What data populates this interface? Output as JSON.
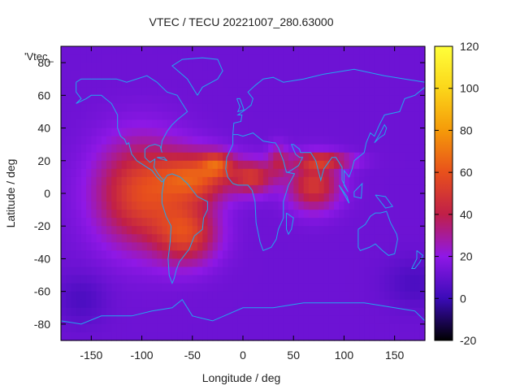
{
  "chart_data": {
    "type": "heatmap",
    "title": "VTEC / TECU 20221007_280.63000",
    "xlabel": "Longitude / deg",
    "ylabel": "Latitude / deg",
    "xlim": [
      -180,
      180
    ],
    "ylim": [
      -90,
      90
    ],
    "x_ticks": [
      -150,
      -100,
      -50,
      0,
      50,
      100,
      150
    ],
    "y_ticks": [
      -80,
      -60,
      -40,
      -20,
      0,
      20,
      40,
      60,
      80
    ],
    "key_label": "'Vtec_",
    "colorbar": {
      "range": [
        -20,
        120
      ],
      "ticks": [
        -20,
        0,
        20,
        40,
        60,
        80,
        100,
        120
      ],
      "palette": [
        "#000000",
        "#3b0bb8",
        "#8f18e6",
        "#c01f48",
        "#e8501c",
        "#f59a09",
        "#fbd61a",
        "#ffff3a"
      ]
    },
    "background_level": 12,
    "anomalies": [
      {
        "lon": -100,
        "lat": 0,
        "sx": 45,
        "sy": 32,
        "amp": 44
      },
      {
        "lon": -45,
        "lat": 10,
        "sx": 35,
        "sy": 15,
        "amp": 42
      },
      {
        "lon": -25,
        "lat": 18,
        "sx": 15,
        "sy": 7,
        "amp": 30
      },
      {
        "lon": -55,
        "lat": -25,
        "sx": 30,
        "sy": 18,
        "amp": 38
      },
      {
        "lon": 10,
        "lat": 10,
        "sx": 20,
        "sy": 10,
        "amp": 35
      },
      {
        "lon": 70,
        "lat": 5,
        "sx": 25,
        "sy": 15,
        "amp": 38
      },
      {
        "lon": 80,
        "lat": 20,
        "sx": 30,
        "sy": 5,
        "amp": 30
      },
      {
        "lon": 35,
        "lat": 20,
        "sx": 10,
        "sy": 10,
        "amp": 20
      },
      {
        "lon": 170,
        "lat": -55,
        "sx": 30,
        "sy": 15,
        "amp": -8
      },
      {
        "lon": -160,
        "lat": -65,
        "sx": 25,
        "sy": 15,
        "amp": -8
      }
    ],
    "coastlines": [
      [
        [
          -165,
          68
        ],
        [
          -160,
          70
        ],
        [
          -140,
          70
        ],
        [
          -125,
          70
        ],
        [
          -115,
          68
        ],
        [
          -95,
          72
        ],
        [
          -85,
          68
        ],
        [
          -80,
          65
        ],
        [
          -75,
          62
        ],
        [
          -65,
          60
        ],
        [
          -60,
          55
        ],
        [
          -55,
          50
        ],
        [
          -65,
          45
        ],
        [
          -70,
          42
        ],
        [
          -75,
          38
        ],
        [
          -80,
          32
        ],
        [
          -81,
          27
        ],
        [
          -80,
          25
        ],
        [
          -82,
          29
        ],
        [
          -87,
          30
        ],
        [
          -93,
          29
        ],
        [
          -97,
          27
        ],
        [
          -97,
          22
        ],
        [
          -92,
          19
        ],
        [
          -87,
          21
        ],
        [
          -88,
          16
        ],
        [
          -84,
          12
        ],
        [
          -80,
          9
        ],
        [
          -78,
          8
        ],
        [
          -80,
          7
        ],
        [
          -85,
          10
        ],
        [
          -90,
          14
        ],
        [
          -95,
          16
        ],
        [
          -105,
          20
        ],
        [
          -110,
          24
        ],
        [
          -113,
          31
        ],
        [
          -115,
          30
        ],
        [
          -117,
          33
        ],
        [
          -121,
          35
        ],
        [
          -124,
          40
        ],
        [
          -124,
          48
        ],
        [
          -130,
          55
        ],
        [
          -140,
          60
        ],
        [
          -150,
          60
        ],
        [
          -155,
          58
        ],
        [
          -165,
          55
        ],
        [
          -160,
          58
        ],
        [
          -165,
          62
        ],
        [
          -165,
          68
        ]
      ],
      [
        [
          -78,
          8
        ],
        [
          -75,
          11
        ],
        [
          -70,
          12
        ],
        [
          -62,
          10
        ],
        [
          -55,
          6
        ],
        [
          -50,
          2
        ],
        [
          -45,
          -2
        ],
        [
          -35,
          -5
        ],
        [
          -35,
          -10
        ],
        [
          -39,
          -15
        ],
        [
          -40,
          -22
        ],
        [
          -48,
          -26
        ],
        [
          -53,
          -34
        ],
        [
          -58,
          -38
        ],
        [
          -63,
          -42
        ],
        [
          -66,
          -47
        ],
        [
          -68,
          -52
        ],
        [
          -70,
          -55
        ],
        [
          -73,
          -50
        ],
        [
          -74,
          -40
        ],
        [
          -72,
          -30
        ],
        [
          -71,
          -20
        ],
        [
          -76,
          -14
        ],
        [
          -80,
          -6
        ],
        [
          -80,
          0
        ],
        [
          -78,
          8
        ]
      ],
      [
        [
          -45,
          60
        ],
        [
          -40,
          65
        ],
        [
          -25,
          70
        ],
        [
          -20,
          75
        ],
        [
          -25,
          82
        ],
        [
          -40,
          83
        ],
        [
          -60,
          82
        ],
        [
          -70,
          78
        ],
        [
          -55,
          70
        ],
        [
          -45,
          60
        ]
      ],
      [
        [
          -10,
          36
        ],
        [
          -5,
          36
        ],
        [
          0,
          35
        ],
        [
          10,
          37
        ],
        [
          20,
          32
        ],
        [
          30,
          31
        ],
        [
          32,
          31
        ],
        [
          35,
          28
        ],
        [
          40,
          20
        ],
        [
          43,
          13
        ],
        [
          51,
          12
        ],
        [
          45,
          5
        ],
        [
          40,
          -5
        ],
        [
          40,
          -15
        ],
        [
          35,
          -22
        ],
        [
          33,
          -28
        ],
        [
          28,
          -33
        ],
        [
          20,
          -35
        ],
        [
          17,
          -30
        ],
        [
          13,
          -18
        ],
        [
          12,
          -5
        ],
        [
          9,
          2
        ],
        [
          5,
          5
        ],
        [
          -5,
          5
        ],
        [
          -10,
          6
        ],
        [
          -15,
          10
        ],
        [
          -17,
          15
        ],
        [
          -16,
          22
        ],
        [
          -10,
          30
        ],
        [
          -10,
          36
        ]
      ],
      [
        [
          -10,
          36
        ],
        [
          -9,
          43
        ],
        [
          -2,
          44
        ],
        [
          -1,
          48
        ],
        [
          -5,
          48
        ],
        [
          2,
          51
        ],
        [
          8,
          54
        ],
        [
          10,
          58
        ],
        [
          5,
          62
        ],
        [
          12,
          66
        ],
        [
          20,
          70
        ],
        [
          30,
          71
        ],
        [
          40,
          68
        ],
        [
          60,
          70
        ],
        [
          80,
          73
        ],
        [
          110,
          76
        ],
        [
          140,
          72
        ],
        [
          160,
          70
        ],
        [
          180,
          68
        ]
      ],
      [
        [
          180,
          65
        ],
        [
          170,
          60
        ],
        [
          160,
          58
        ],
        [
          155,
          50
        ],
        [
          140,
          48
        ],
        [
          135,
          42
        ],
        [
          130,
          35
        ],
        [
          126,
          37
        ],
        [
          122,
          31
        ],
        [
          120,
          25
        ],
        [
          110,
          20
        ],
        [
          108,
          15
        ],
        [
          105,
          10
        ],
        [
          100,
          14
        ],
        [
          100,
          5
        ],
        [
          104,
          1
        ],
        [
          98,
          8
        ],
        [
          98,
          16
        ],
        [
          92,
          22
        ],
        [
          88,
          22
        ],
        [
          80,
          15
        ],
        [
          77,
          8
        ],
        [
          72,
          20
        ],
        [
          67,
          25
        ],
        [
          57,
          25
        ],
        [
          56,
          27
        ],
        [
          50,
          30
        ],
        [
          48,
          30
        ],
        [
          52,
          24
        ],
        [
          56,
          22
        ],
        [
          59,
          22
        ],
        [
          55,
          17
        ],
        [
          45,
          13
        ],
        [
          43,
          13
        ]
      ],
      [
        [
          114,
          -22
        ],
        [
          114,
          -33
        ],
        [
          116,
          -35
        ],
        [
          125,
          -33
        ],
        [
          131,
          -31
        ],
        [
          138,
          -35
        ],
        [
          144,
          -38
        ],
        [
          150,
          -37
        ],
        [
          153,
          -28
        ],
        [
          152,
          -25
        ],
        [
          146,
          -18
        ],
        [
          142,
          -11
        ],
        [
          136,
          -12
        ],
        [
          131,
          -12
        ],
        [
          126,
          -14
        ],
        [
          121,
          -19
        ],
        [
          114,
          -22
        ]
      ],
      [
        [
          -180,
          -78
        ],
        [
          -160,
          -80
        ],
        [
          -140,
          -75
        ],
        [
          -110,
          -75
        ],
        [
          -90,
          -72
        ],
        [
          -70,
          -70
        ],
        [
          -60,
          -65
        ],
        [
          -50,
          -75
        ],
        [
          -30,
          -78
        ],
        [
          0,
          -70
        ],
        [
          30,
          -70
        ],
        [
          60,
          -67
        ],
        [
          90,
          -67
        ],
        [
          120,
          -67
        ],
        [
          150,
          -70
        ],
        [
          170,
          -72
        ],
        [
          180,
          -78
        ]
      ],
      [
        [
          43,
          -12
        ],
        [
          50,
          -15
        ],
        [
          48,
          -22
        ],
        [
          45,
          -25
        ],
        [
          43,
          -22
        ],
        [
          43,
          -12
        ]
      ],
      [
        [
          172,
          -35
        ],
        [
          178,
          -38
        ],
        [
          175,
          -42
        ],
        [
          170,
          -46
        ],
        [
          167,
          -46
        ],
        [
          172,
          -40
        ],
        [
          172,
          -35
        ]
      ],
      [
        [
          -6,
          58
        ],
        [
          -3,
          58
        ],
        [
          0,
          53
        ],
        [
          1,
          51
        ],
        [
          -5,
          50
        ],
        [
          -3,
          53
        ],
        [
          -6,
          58
        ]
      ],
      [
        [
          130,
          31
        ],
        [
          135,
          34
        ],
        [
          140,
          36
        ],
        [
          142,
          40
        ],
        [
          140,
          42
        ],
        [
          135,
          36
        ],
        [
          130,
          31
        ]
      ],
      [
        [
          95,
          5
        ],
        [
          105,
          -6
        ],
        [
          103,
          -2
        ],
        [
          95,
          5
        ]
      ],
      [
        [
          110,
          1
        ],
        [
          118,
          6
        ],
        [
          117,
          -3
        ],
        [
          110,
          -2
        ],
        [
          110,
          1
        ]
      ],
      [
        [
          131,
          -1
        ],
        [
          141,
          -2
        ],
        [
          148,
          -8
        ],
        [
          141,
          -9
        ],
        [
          131,
          -1
        ]
      ],
      [
        [
          -85,
          22
        ],
        [
          -78,
          22
        ],
        [
          -75,
          20
        ],
        [
          -80,
          21
        ],
        [
          -85,
          22
        ]
      ]
    ]
  }
}
